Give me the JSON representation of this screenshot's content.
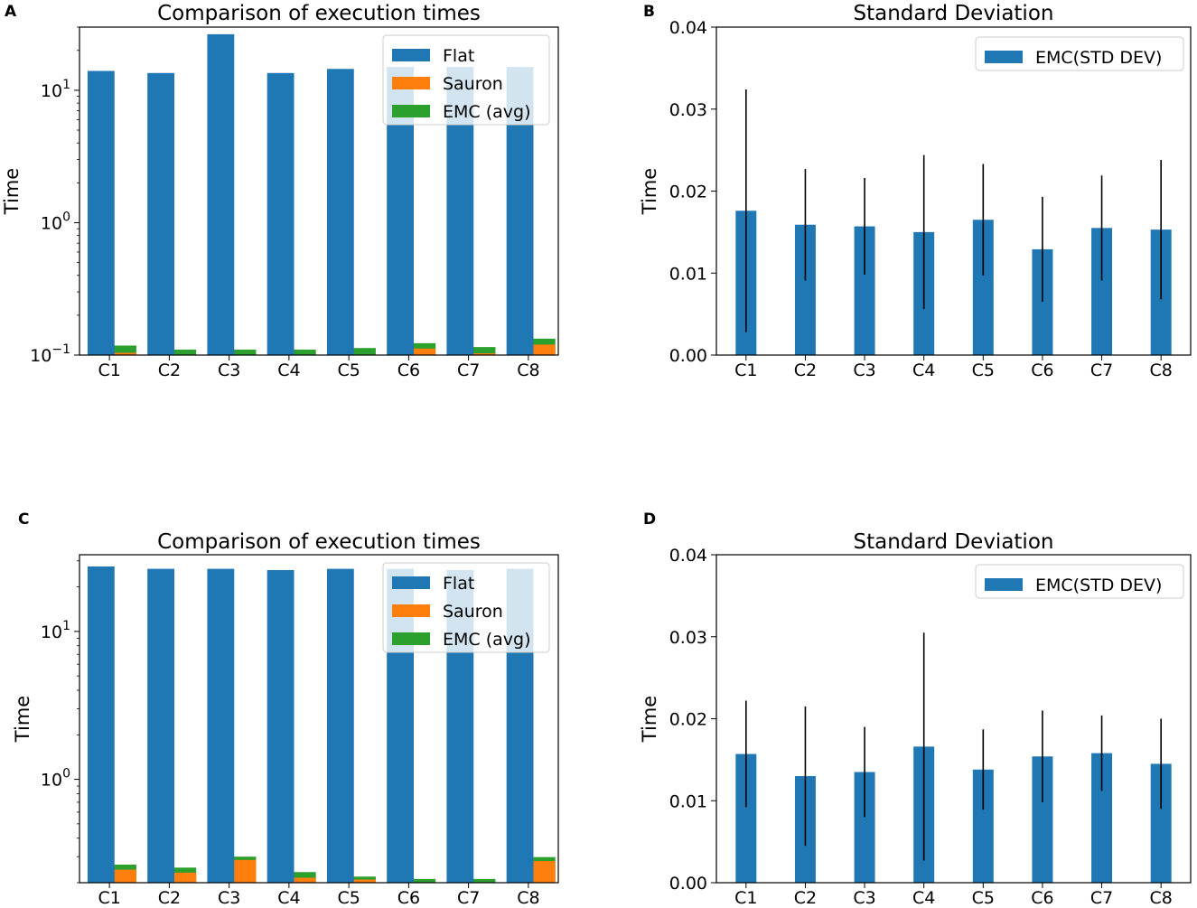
{
  "chart_data": [
    {
      "panel": "A",
      "type": "bar",
      "scale": "log",
      "title": "Comparison of execution times",
      "ylabel": "Time",
      "xlabel": "",
      "categories": [
        "C1",
        "C2",
        "C3",
        "C4",
        "C5",
        "C6",
        "C7",
        "C8"
      ],
      "ylim": [
        0.1,
        30
      ],
      "yticks": [
        {
          "value": 0.1,
          "base": "10",
          "exp": "−1"
        },
        {
          "value": 1,
          "base": "10",
          "exp": "0"
        },
        {
          "value": 10,
          "base": "10",
          "exp": "1"
        }
      ],
      "series": [
        {
          "name": "Flat",
          "color": "#1f77b4",
          "values": [
            14.0,
            13.5,
            26.5,
            13.5,
            14.5,
            15.0,
            15.0,
            15.0
          ]
        },
        {
          "name": "Sauron",
          "color": "#ff7f0e",
          "values": [
            0.104,
            0.1,
            0.1,
            0.1,
            0.1,
            0.112,
            0.103,
            0.12
          ]
        },
        {
          "name": "EMC (avg)",
          "color": "#2ca02c",
          "values": [
            0.118,
            0.11,
            0.11,
            0.11,
            0.113,
            0.123,
            0.115,
            0.133
          ]
        }
      ],
      "legend_position": "top-right"
    },
    {
      "panel": "B",
      "type": "bar",
      "scale": "linear",
      "title": "Standard Deviation",
      "ylabel": "Time",
      "xlabel": "",
      "categories": [
        "C1",
        "C2",
        "C3",
        "C4",
        "C5",
        "C6",
        "C7",
        "C8"
      ],
      "ylim": [
        0,
        0.04
      ],
      "yticks": [
        "0.00",
        "0.01",
        "0.02",
        "0.03",
        "0.04"
      ],
      "series": [
        {
          "name": "EMC(STD DEV)",
          "color": "#1f77b4",
          "values": [
            0.0176,
            0.0159,
            0.0157,
            0.015,
            0.0165,
            0.0129,
            0.0155,
            0.0153
          ],
          "errors": [
            0.0148,
            0.0068,
            0.0059,
            0.0094,
            0.0068,
            0.0064,
            0.0064,
            0.0085
          ]
        }
      ],
      "legend_position": "top-right"
    },
    {
      "panel": "C",
      "type": "bar",
      "scale": "log",
      "title": "Comparison of execution times",
      "ylabel": "Time",
      "xlabel": "",
      "categories": [
        "C1",
        "C2",
        "C3",
        "C4",
        "C5",
        "C6",
        "C7",
        "C8"
      ],
      "ylim": [
        0.2,
        33
      ],
      "yticks": [
        {
          "value": 1,
          "base": "10",
          "exp": "0"
        },
        {
          "value": 10,
          "base": "10",
          "exp": "1"
        }
      ],
      "series": [
        {
          "name": "Flat",
          "color": "#1f77b4",
          "values": [
            27.5,
            26.5,
            26.5,
            26.0,
            26.5,
            26.5,
            26.0,
            26.5
          ]
        },
        {
          "name": "Sauron",
          "color": "#ff7f0e",
          "values": [
            0.245,
            0.234,
            0.285,
            0.216,
            0.21,
            0.2,
            0.2,
            0.28
          ]
        },
        {
          "name": "EMC (avg)",
          "color": "#2ca02c",
          "values": [
            0.265,
            0.253,
            0.3,
            0.236,
            0.22,
            0.212,
            0.212,
            0.298
          ]
        }
      ],
      "legend_position": "top-right"
    },
    {
      "panel": "D",
      "type": "bar",
      "scale": "linear",
      "title": "Standard Deviation",
      "ylabel": "Time",
      "xlabel": "",
      "categories": [
        "C1",
        "C2",
        "C3",
        "C4",
        "C5",
        "C6",
        "C7",
        "C8"
      ],
      "ylim": [
        0,
        0.04
      ],
      "yticks": [
        "0.00",
        "0.01",
        "0.02",
        "0.03",
        "0.04"
      ],
      "series": [
        {
          "name": "EMC(STD DEV)",
          "color": "#1f77b4",
          "values": [
            0.0157,
            0.013,
            0.0135,
            0.0166,
            0.0138,
            0.0154,
            0.0158,
            0.0145
          ],
          "errors": [
            0.0065,
            0.0085,
            0.0055,
            0.0139,
            0.0049,
            0.0056,
            0.0046,
            0.0055
          ]
        }
      ],
      "legend_position": "top-right"
    }
  ]
}
